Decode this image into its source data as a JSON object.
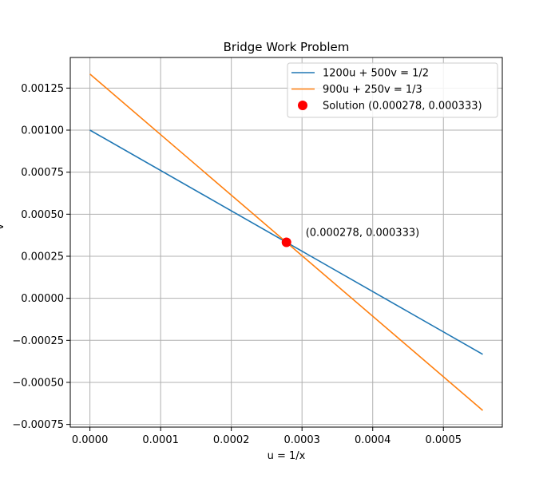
{
  "chart_data": {
    "type": "line",
    "title": "Bridge Work Problem",
    "xlabel": "u = 1/x",
    "ylabel": "v",
    "xlim": [
      -2.78e-05,
      0.0005833
    ],
    "ylim": [
      -0.000766,
      0.001432
    ],
    "x_ticks": [
      "0.0000",
      "0.0001",
      "0.0002",
      "0.0003",
      "0.0004",
      "0.0005"
    ],
    "y_ticks": [
      "−0.00075",
      "−0.00050",
      "−0.00025",
      "0.00000",
      "0.00025",
      "0.00050",
      "0.00075",
      "0.00100",
      "0.00125"
    ],
    "grid": true,
    "legend_position": "top-right",
    "series": [
      {
        "name": "1200u + 500v = 1/2",
        "color": "#1f77b4",
        "x": [
          0.0,
          0.0005556
        ],
        "y": [
          0.001,
          -0.0003333
        ]
      },
      {
        "name": "900u + 250v = 1/3",
        "color": "#ff7f0e",
        "x": [
          0.0,
          0.0005556
        ],
        "y": [
          0.0013333,
          -0.0006667
        ]
      }
    ],
    "points": [
      {
        "name": "Solution (0.000278, 0.000333)",
        "color": "#ff0000",
        "x": 0.000278,
        "y": 0.000333,
        "annotation": "(0.000278, 0.000333)"
      }
    ]
  }
}
